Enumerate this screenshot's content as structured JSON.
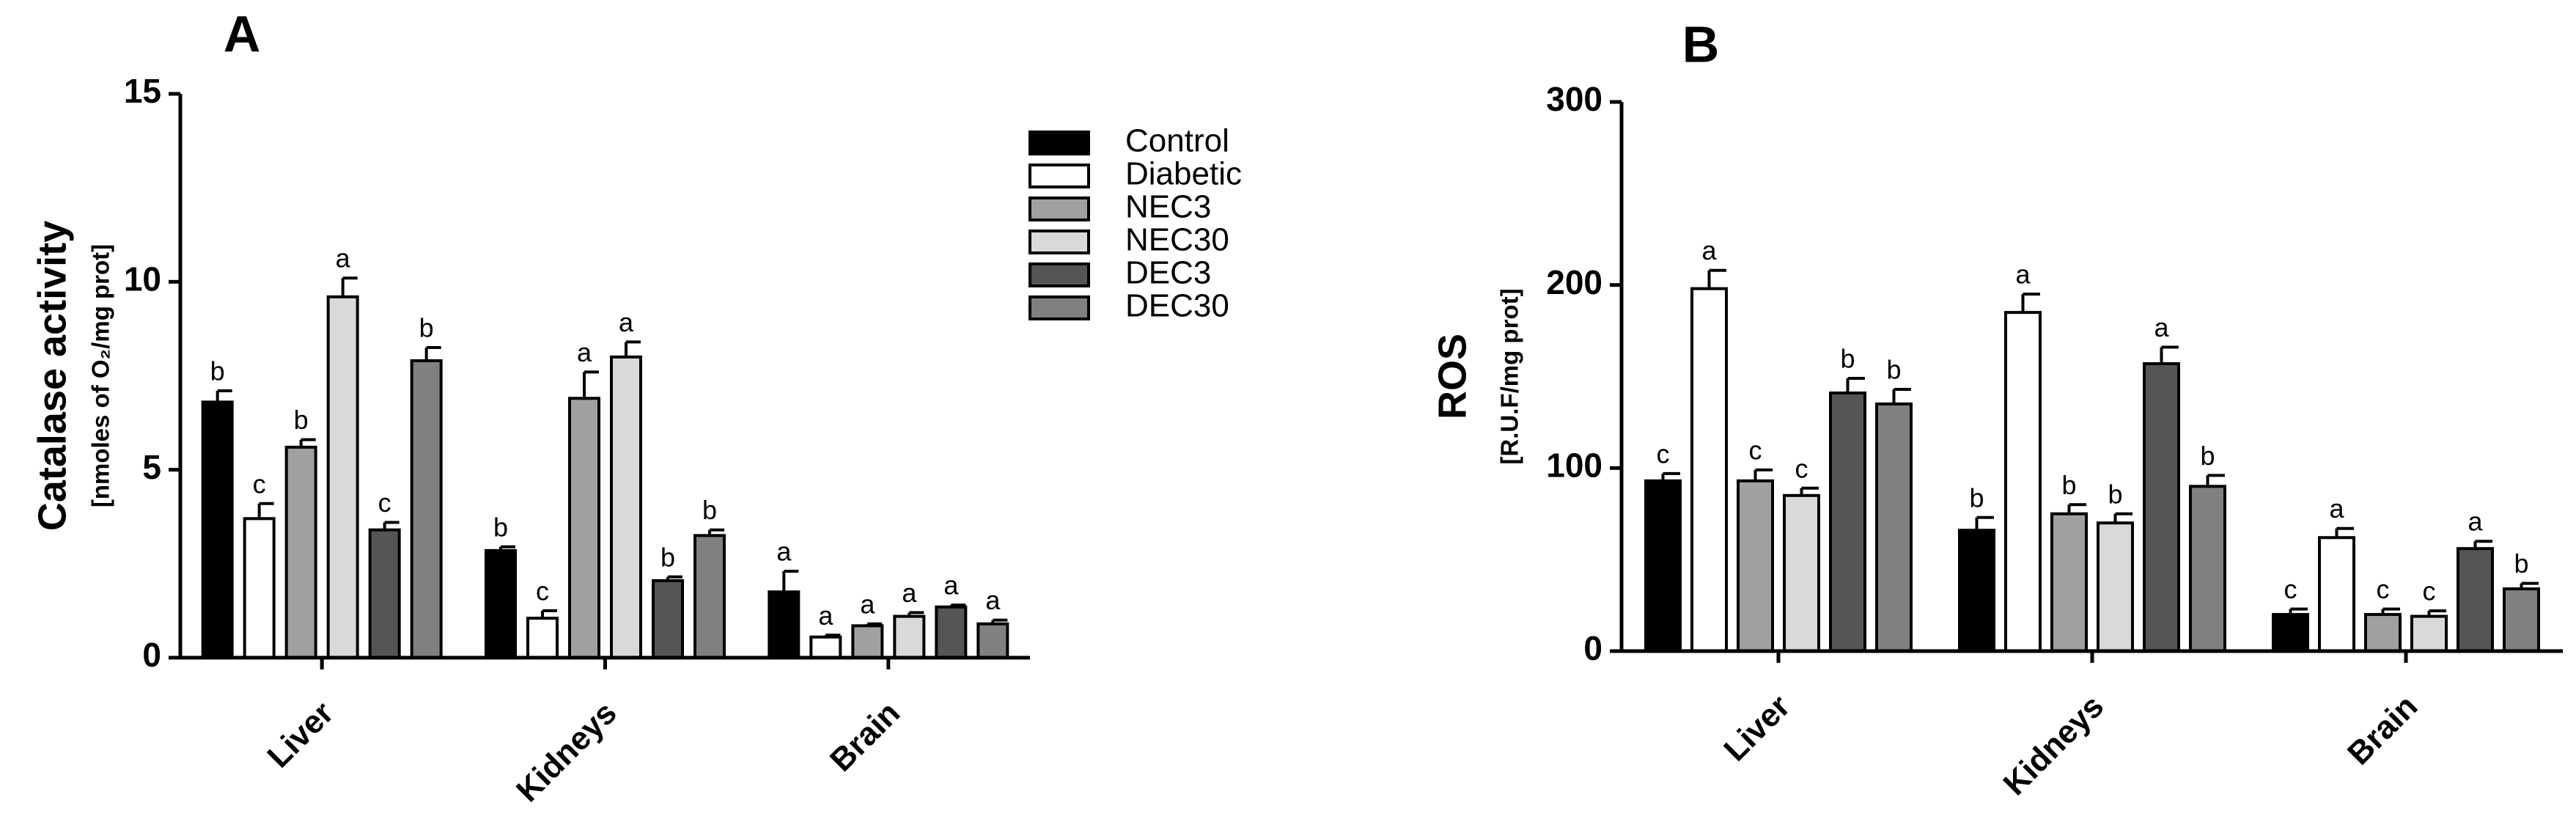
{
  "chart_data": [
    {
      "type": "bar",
      "title": "A",
      "ylabel": "Catalase activity",
      "ylabel_sub": "[nmoles of O₂/mg prot]",
      "categories": [
        "Liver",
        "Kidneys",
        "Brain"
      ],
      "ylim": [
        0,
        15
      ],
      "yticks": [
        0,
        5,
        10,
        15
      ],
      "series": [
        {
          "name": "Control",
          "color": "#000000",
          "values": [
            6.8,
            2.85,
            1.75
          ],
          "errors": [
            0.3,
            0.1,
            0.55
          ],
          "letters": [
            "b",
            "b",
            "a"
          ]
        },
        {
          "name": "Diabetic",
          "color": "#ffffff",
          "values": [
            3.7,
            1.05,
            0.55
          ],
          "errors": [
            0.4,
            0.2,
            0.05
          ],
          "letters": [
            "c",
            "c",
            "a"
          ]
        },
        {
          "name": "NEC3",
          "color": "#a0a0a0",
          "values": [
            5.6,
            6.9,
            0.85
          ],
          "errors": [
            0.2,
            0.7,
            0.05
          ],
          "letters": [
            "b",
            "a",
            "a"
          ]
        },
        {
          "name": "NEC30",
          "color": "#d9d9d9",
          "values": [
            9.6,
            8.0,
            1.1
          ],
          "errors": [
            0.5,
            0.4,
            0.1
          ],
          "letters": [
            "a",
            "a",
            "a"
          ]
        },
        {
          "name": "DEC3",
          "color": "#555555",
          "values": [
            3.4,
            2.05,
            1.35
          ],
          "errors": [
            0.2,
            0.1,
            0.05
          ],
          "letters": [
            "c",
            "b",
            "a"
          ]
        },
        {
          "name": "DEC30",
          "color": "#808080",
          "values": [
            7.9,
            3.25,
            0.9
          ],
          "errors": [
            0.35,
            0.15,
            0.1
          ],
          "letters": [
            "b",
            "b",
            "a"
          ]
        }
      ]
    },
    {
      "type": "bar",
      "title": "B",
      "ylabel": "ROS",
      "ylabel_sub": "[R.U.F/mg prot]",
      "categories": [
        "Liver",
        "Kidneys",
        "Brain"
      ],
      "ylim": [
        0,
        300
      ],
      "yticks": [
        0,
        100,
        200,
        300
      ],
      "series": [
        {
          "color": "#000000",
          "values": [
            93,
            66,
            20
          ],
          "errors": [
            4,
            7,
            3
          ],
          "letters": [
            "c",
            "b",
            "c"
          ]
        },
        {
          "color": "#ffffff",
          "values": [
            198,
            185,
            62
          ],
          "errors": [
            10,
            10,
            5
          ],
          "letters": [
            "a",
            "a",
            "a"
          ]
        },
        {
          "color": "#a0a0a0",
          "values": [
            93,
            75,
            20
          ],
          "errors": [
            6,
            5,
            3
          ],
          "letters": [
            "c",
            "b",
            "c"
          ]
        },
        {
          "color": "#d9d9d9",
          "values": [
            85,
            70,
            19
          ],
          "errors": [
            4,
            5,
            3
          ],
          "letters": [
            "c",
            "b",
            "c"
          ]
        },
        {
          "color": "#555555",
          "values": [
            141,
            157,
            56
          ],
          "errors": [
            8,
            9,
            4
          ],
          "letters": [
            "b",
            "a",
            "a"
          ]
        },
        {
          "color": "#808080",
          "values": [
            135,
            90,
            34
          ],
          "errors": [
            8,
            6,
            3
          ],
          "letters": [
            "b",
            "b",
            "b"
          ]
        }
      ]
    }
  ]
}
